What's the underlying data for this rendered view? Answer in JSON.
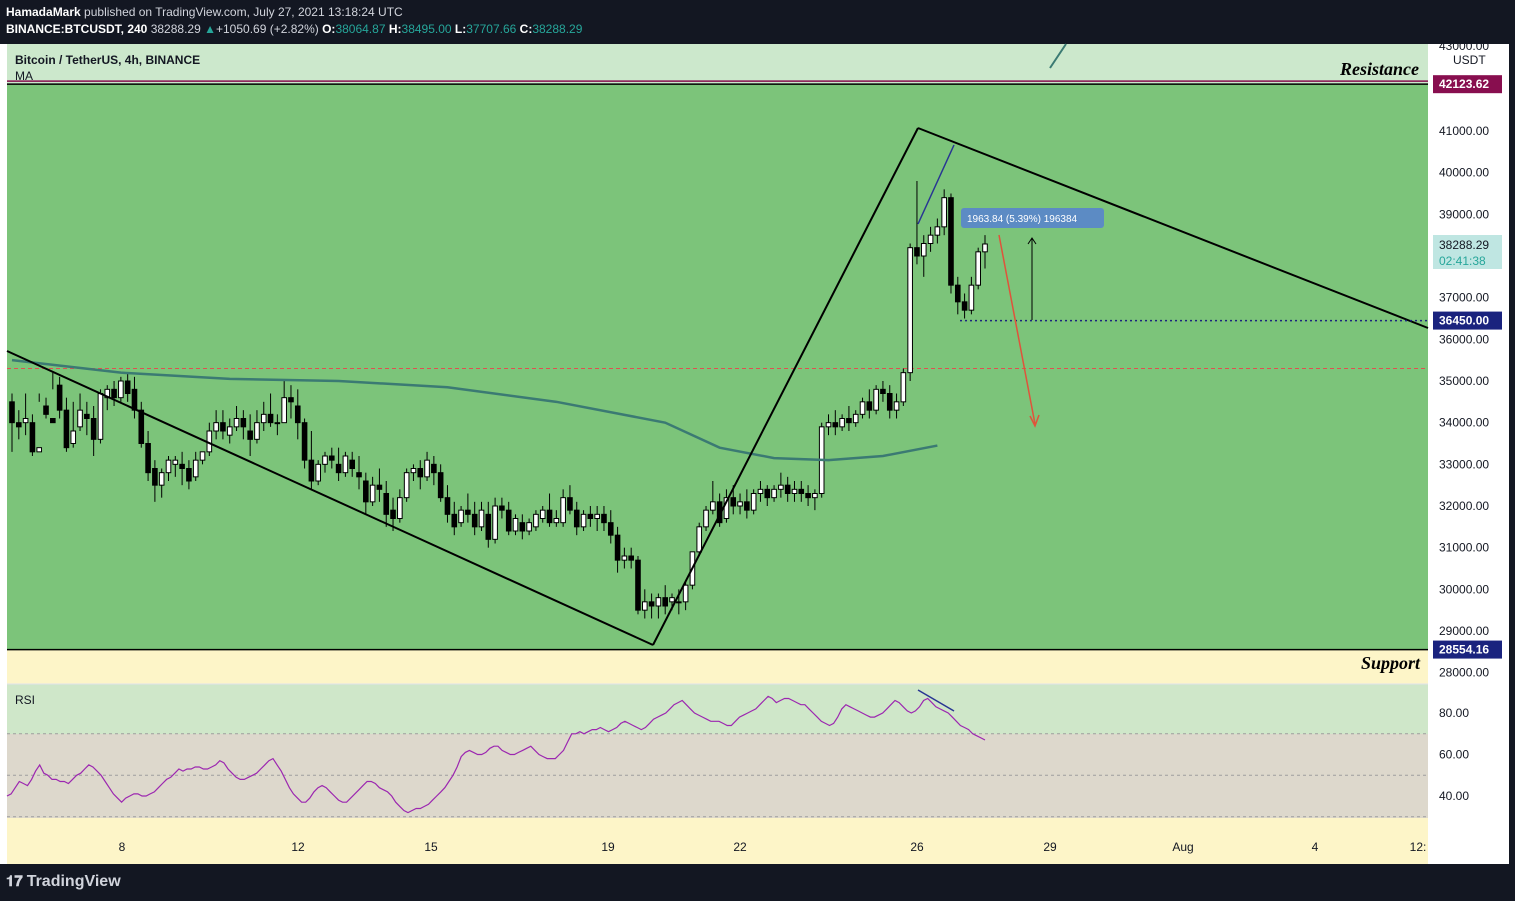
{
  "header": {
    "author": "HamadaMark",
    "published": "published on TradingView.com, July 27, 2021 13:18:24 UTC",
    "symbol_line": "BINANCE:BTCUSDT, 240",
    "last": "38288.29",
    "change": "+1050.69 (+2.82%)",
    "o_label": "O:",
    "o": "38064.87",
    "h_label": "H:",
    "h": "38495.00",
    "l_label": "L:",
    "l": "37707.66",
    "c_label": "C:",
    "c": "38288.29"
  },
  "legend": {
    "title": "Bitcoin / TetherUS, 4h, BINANCE",
    "indicator": "MA"
  },
  "rsi_label": "RSI",
  "zones": {
    "resistance": "Resistance",
    "support": "Support"
  },
  "footer": {
    "brand": "TradingView"
  },
  "colors": {
    "zone": "#7cc47a",
    "resistance_band": "#cce8cc",
    "support_band": "#fdf5c8",
    "ma": "#3b7a73",
    "rsi_line": "#9c27b0",
    "trend_line": "#000000",
    "resistance_tag": "#880e4f",
    "level_tag": "#1a237e",
    "last_price_tag": "#26a69a",
    "measure_tag": "#5c8bc4"
  },
  "chart_data": {
    "type": "candlestick",
    "currency": "USDT",
    "y_ticks": [
      28000,
      29000,
      30000,
      31000,
      32000,
      33000,
      34000,
      35000,
      36000,
      37000,
      38000,
      39000,
      40000,
      41000
    ],
    "x_ticks": [
      "8",
      "12",
      "15",
      "19",
      "22",
      "26",
      "29",
      "Aug",
      "4",
      "12:"
    ],
    "axis_top_partial": "43000.00",
    "price_tags": {
      "resistance": "42123.62",
      "last_price": "38288.29",
      "countdown": "02:41:38",
      "level": "36450.00",
      "support": "28554.16"
    },
    "resistance_price": 42123.62,
    "support_price": 28554.16,
    "horizontal_level": 36450.0,
    "dashed_level": 35300,
    "measure_label": "1963.84 (5.39%) 196384",
    "trend_lines": [
      {
        "points": [
          [
            "Jul 5",
            35700
          ],
          [
            "Jul 19 16:00",
            28650
          ]
        ]
      },
      {
        "points": [
          [
            "Jul 19 16:00",
            28650
          ],
          [
            "Jul 26 00:00",
            41100
          ]
        ]
      },
      {
        "points": [
          [
            "Jul 26 00:00",
            41100
          ],
          [
            "Aug 10",
            36300
          ]
        ]
      }
    ],
    "ma_points": [
      [
        0,
        35500
      ],
      [
        16,
        35200
      ],
      [
        32,
        35050
      ],
      [
        48,
        35000
      ],
      [
        64,
        34850
      ],
      [
        80,
        34500
      ],
      [
        96,
        34000
      ],
      [
        104,
        33400
      ],
      [
        112,
        33150
      ],
      [
        120,
        33100
      ],
      [
        128,
        33200
      ],
      [
        136,
        33450
      ]
    ],
    "candles": [
      [
        34500,
        34700,
        34000,
        33300
      ],
      [
        34000,
        34300,
        33900,
        33600
      ],
      [
        34000,
        34700,
        34100,
        33700
      ],
      [
        34000,
        34200,
        33300,
        33200
      ],
      [
        33300,
        34700,
        33400,
        34500
      ],
      [
        34400,
        34600,
        34200,
        34100
      ],
      [
        34100,
        35200,
        34000,
        34800
      ],
      [
        34900,
        35100,
        34300,
        34100
      ],
      [
        34300,
        34600,
        33400,
        33300
      ],
      [
        33500,
        34500,
        33800,
        33400
      ],
      [
        33900,
        34700,
        34300,
        33800
      ],
      [
        34200,
        34500,
        34100,
        33700
      ],
      [
        34100,
        34400,
        33600,
        33200
      ],
      [
        33600,
        34800,
        34700,
        33500
      ],
      [
        34600,
        34900,
        34800,
        34300
      ],
      [
        34800,
        35000,
        34600,
        34400
      ],
      [
        34600,
        35100,
        35000,
        34500
      ],
      [
        35000,
        35200,
        34700,
        34500
      ],
      [
        34800,
        35100,
        34300,
        34100
      ],
      [
        34300,
        34500,
        33500,
        33400
      ],
      [
        33500,
        33800,
        32800,
        32600
      ],
      [
        32900,
        33100,
        32500,
        32100
      ],
      [
        32500,
        32900,
        32800,
        32200
      ],
      [
        32800,
        33200,
        33100,
        32600
      ],
      [
        33000,
        33200,
        33100,
        32700
      ],
      [
        33000,
        33300,
        32900,
        32500
      ],
      [
        32900,
        33100,
        32600,
        32400
      ],
      [
        32700,
        33300,
        33100,
        32600
      ],
      [
        33100,
        33300,
        33300,
        33000
      ],
      [
        33300,
        34000,
        33800,
        33200
      ],
      [
        33800,
        34300,
        34000,
        33600
      ],
      [
        34000,
        34300,
        33800,
        33600
      ],
      [
        33700,
        34100,
        33900,
        33500
      ],
      [
        33900,
        34400,
        34100,
        33800
      ],
      [
        34100,
        34300,
        33900,
        33600
      ],
      [
        33800,
        34200,
        33600,
        33200
      ],
      [
        33600,
        34300,
        34000,
        33500
      ],
      [
        34000,
        34500,
        34200,
        33800
      ],
      [
        34200,
        34700,
        34000,
        33900
      ],
      [
        34000,
        34200,
        34000,
        33700
      ],
      [
        34000,
        35000,
        34600,
        34400
      ],
      [
        34600,
        34900,
        34500,
        34100
      ],
      [
        34400,
        34800,
        34000,
        33600
      ],
      [
        34000,
        34100,
        33100,
        32900
      ],
      [
        33100,
        33800,
        32600,
        32400
      ],
      [
        32600,
        33100,
        33000,
        32500
      ],
      [
        33000,
        33300,
        33200,
        32800
      ],
      [
        33200,
        33400,
        33100,
        32900
      ],
      [
        33000,
        33400,
        32800,
        32600
      ],
      [
        32800,
        33300,
        33200,
        32700
      ],
      [
        33100,
        33300,
        32900,
        32700
      ],
      [
        32800,
        33200,
        32700,
        32400
      ],
      [
        32600,
        32800,
        32100,
        31800
      ],
      [
        32100,
        32700,
        32500,
        32000
      ],
      [
        32500,
        32900,
        32400,
        32100
      ],
      [
        32300,
        32600,
        31800,
        31500
      ],
      [
        31900,
        32200,
        31700,
        31400
      ],
      [
        31700,
        32400,
        32200,
        31600
      ],
      [
        32200,
        32900,
        32800,
        32100
      ],
      [
        32800,
        33000,
        32900,
        32600
      ],
      [
        32900,
        33100,
        32700,
        32400
      ],
      [
        32700,
        33300,
        33100,
        32600
      ],
      [
        33000,
        33200,
        32800,
        32500
      ],
      [
        32800,
        33000,
        32200,
        32100
      ],
      [
        32200,
        32500,
        31800,
        31600
      ],
      [
        31800,
        32100,
        31500,
        31300
      ],
      [
        31600,
        32000,
        31900,
        31500
      ],
      [
        31900,
        32300,
        31800,
        31600
      ],
      [
        31800,
        32100,
        31500,
        31300
      ],
      [
        31500,
        32100,
        31900,
        31400
      ],
      [
        31800,
        32100,
        31200,
        31000
      ],
      [
        31200,
        32200,
        32000,
        31100
      ],
      [
        32000,
        32200,
        31900,
        31700
      ],
      [
        31900,
        32100,
        31400,
        31300
      ],
      [
        31400,
        31800,
        31700,
        31300
      ],
      [
        31600,
        31800,
        31400,
        31200
      ],
      [
        31400,
        31700,
        31600,
        31300
      ],
      [
        31500,
        31900,
        31800,
        31400
      ],
      [
        31700,
        32000,
        31900,
        31600
      ],
      [
        31900,
        32300,
        31600,
        31500
      ],
      [
        31600,
        31900,
        31700,
        31500
      ],
      [
        31600,
        32400,
        32200,
        31500
      ],
      [
        32200,
        32500,
        31900,
        31800
      ],
      [
        31900,
        32100,
        31500,
        31300
      ],
      [
        31500,
        31900,
        31800,
        31400
      ],
      [
        31800,
        32000,
        31700,
        31500
      ],
      [
        31700,
        32000,
        31800,
        31400
      ],
      [
        31800,
        32000,
        31600,
        31400
      ],
      [
        31600,
        31900,
        31300,
        31100
      ],
      [
        31300,
        31500,
        30700,
        30400
      ],
      [
        30700,
        31000,
        30800,
        30500
      ],
      [
        30800,
        31000,
        30700,
        30500
      ],
      [
        30700,
        30800,
        29500,
        29400
      ],
      [
        29500,
        30000,
        29700,
        29300
      ],
      [
        29700,
        29900,
        29600,
        29300
      ],
      [
        29600,
        29900,
        29800,
        29300
      ],
      [
        29800,
        30100,
        29600,
        29400
      ],
      [
        29700,
        29900,
        29800,
        29500
      ],
      [
        29700,
        30000,
        29700,
        29400
      ],
      [
        29700,
        30200,
        30100,
        29500
      ],
      [
        30100,
        30900,
        30900,
        30000
      ],
      [
        30900,
        31600,
        31500,
        30800
      ],
      [
        31500,
        32000,
        31900,
        31400
      ],
      [
        31900,
        32600,
        32100,
        31800
      ],
      [
        32100,
        32300,
        31600,
        31500
      ],
      [
        31700,
        32400,
        32200,
        31600
      ],
      [
        32200,
        32500,
        32000,
        31800
      ],
      [
        32000,
        32300,
        32100,
        31800
      ],
      [
        32100,
        32400,
        31900,
        31700
      ],
      [
        31900,
        32400,
        32300,
        31800
      ],
      [
        32300,
        32600,
        32400,
        32100
      ],
      [
        32400,
        32500,
        32200,
        32000
      ],
      [
        32200,
        32500,
        32400,
        32100
      ],
      [
        32400,
        32800,
        32500,
        32200
      ],
      [
        32500,
        32700,
        32300,
        32100
      ],
      [
        32300,
        32600,
        32400,
        32100
      ],
      [
        32400,
        32600,
        32300,
        32100
      ],
      [
        32300,
        32500,
        32200,
        32000
      ],
      [
        32200,
        32400,
        32300,
        31900
      ],
      [
        32300,
        34000,
        33900,
        32200
      ],
      [
        33900,
        34200,
        34000,
        33700
      ],
      [
        34000,
        34300,
        33900,
        33700
      ],
      [
        33900,
        34200,
        34100,
        33800
      ],
      [
        34100,
        34400,
        34000,
        33800
      ],
      [
        34000,
        34300,
        34200,
        33900
      ],
      [
        34200,
        34600,
        34500,
        34100
      ],
      [
        34500,
        34800,
        34300,
        34100
      ],
      [
        34300,
        34900,
        34800,
        34200
      ],
      [
        34800,
        35000,
        34700,
        34500
      ],
      [
        34700,
        34900,
        34300,
        34100
      ],
      [
        34300,
        34700,
        34500,
        34100
      ],
      [
        34500,
        35300,
        35200,
        34400
      ],
      [
        35200,
        38300,
        38200,
        35000
      ],
      [
        38200,
        39800,
        38000,
        37800
      ],
      [
        38000,
        38500,
        38300,
        37500
      ],
      [
        38300,
        38700,
        38500,
        38100
      ],
      [
        38500,
        38900,
        38700,
        38300
      ],
      [
        38700,
        39600,
        39400,
        38500
      ],
      [
        39400,
        39500,
        37300,
        37100
      ],
      [
        37300,
        37500,
        36900,
        36600
      ],
      [
        36900,
        37100,
        36700,
        36500
      ],
      [
        36700,
        37500,
        37300,
        36600
      ],
      [
        37300,
        38200,
        38100,
        37200
      ],
      [
        38100,
        38500,
        38288.29,
        37700
      ]
    ],
    "rsi": {
      "y_ticks": [
        40,
        60,
        80
      ],
      "bands": [
        30,
        50,
        70
      ],
      "values": [
        40,
        41,
        44,
        47,
        46,
        45,
        48,
        52,
        55,
        51,
        50,
        48,
        48,
        47,
        47,
        46,
        48,
        50,
        51,
        53,
        55,
        54,
        52,
        50,
        47,
        44,
        41,
        39,
        37,
        39,
        40,
        41,
        41,
        40,
        40,
        41,
        42,
        44,
        46,
        48,
        49,
        51,
        53,
        52,
        53,
        53,
        54,
        54,
        53,
        53,
        54,
        55,
        57,
        56,
        53,
        51,
        49,
        48,
        48,
        49,
        50,
        51,
        53,
        55,
        57,
        58,
        55,
        52,
        48,
        44,
        41,
        39,
        37,
        37,
        39,
        42,
        44,
        45,
        44,
        42,
        40,
        38,
        37,
        37,
        39,
        41,
        43,
        45,
        47,
        47,
        46,
        44,
        43,
        42,
        40,
        37,
        35,
        33,
        32,
        33,
        34,
        34,
        35,
        36,
        38,
        40,
        42,
        44,
        47,
        50,
        54,
        59,
        61,
        62,
        61,
        60,
        60,
        61,
        63,
        64,
        64,
        62,
        61,
        60,
        60,
        61,
        62,
        63,
        64,
        62,
        60,
        59,
        58,
        58,
        58,
        60,
        62,
        66,
        70,
        70,
        71,
        70,
        71,
        72,
        72,
        73,
        72,
        71,
        72,
        73,
        75,
        76,
        75,
        74,
        73,
        72,
        73,
        75,
        77,
        78,
        79,
        80,
        82,
        84,
        85,
        86,
        84,
        82,
        80,
        79,
        78,
        77,
        76,
        76,
        76,
        75,
        74,
        74,
        76,
        78,
        79,
        80,
        81,
        82,
        84,
        86,
        88,
        87,
        85,
        86,
        87,
        87,
        86,
        85,
        84,
        84,
        82,
        80,
        78,
        76,
        75,
        74,
        75,
        78,
        82,
        84,
        83,
        82,
        81,
        80,
        79,
        78,
        78,
        79,
        80,
        82,
        84,
        86,
        85,
        83,
        81,
        80,
        81,
        83,
        86,
        87,
        85,
        83,
        82,
        81,
        80,
        78,
        76,
        74,
        73,
        72,
        70,
        69,
        68,
        67
      ]
    }
  }
}
